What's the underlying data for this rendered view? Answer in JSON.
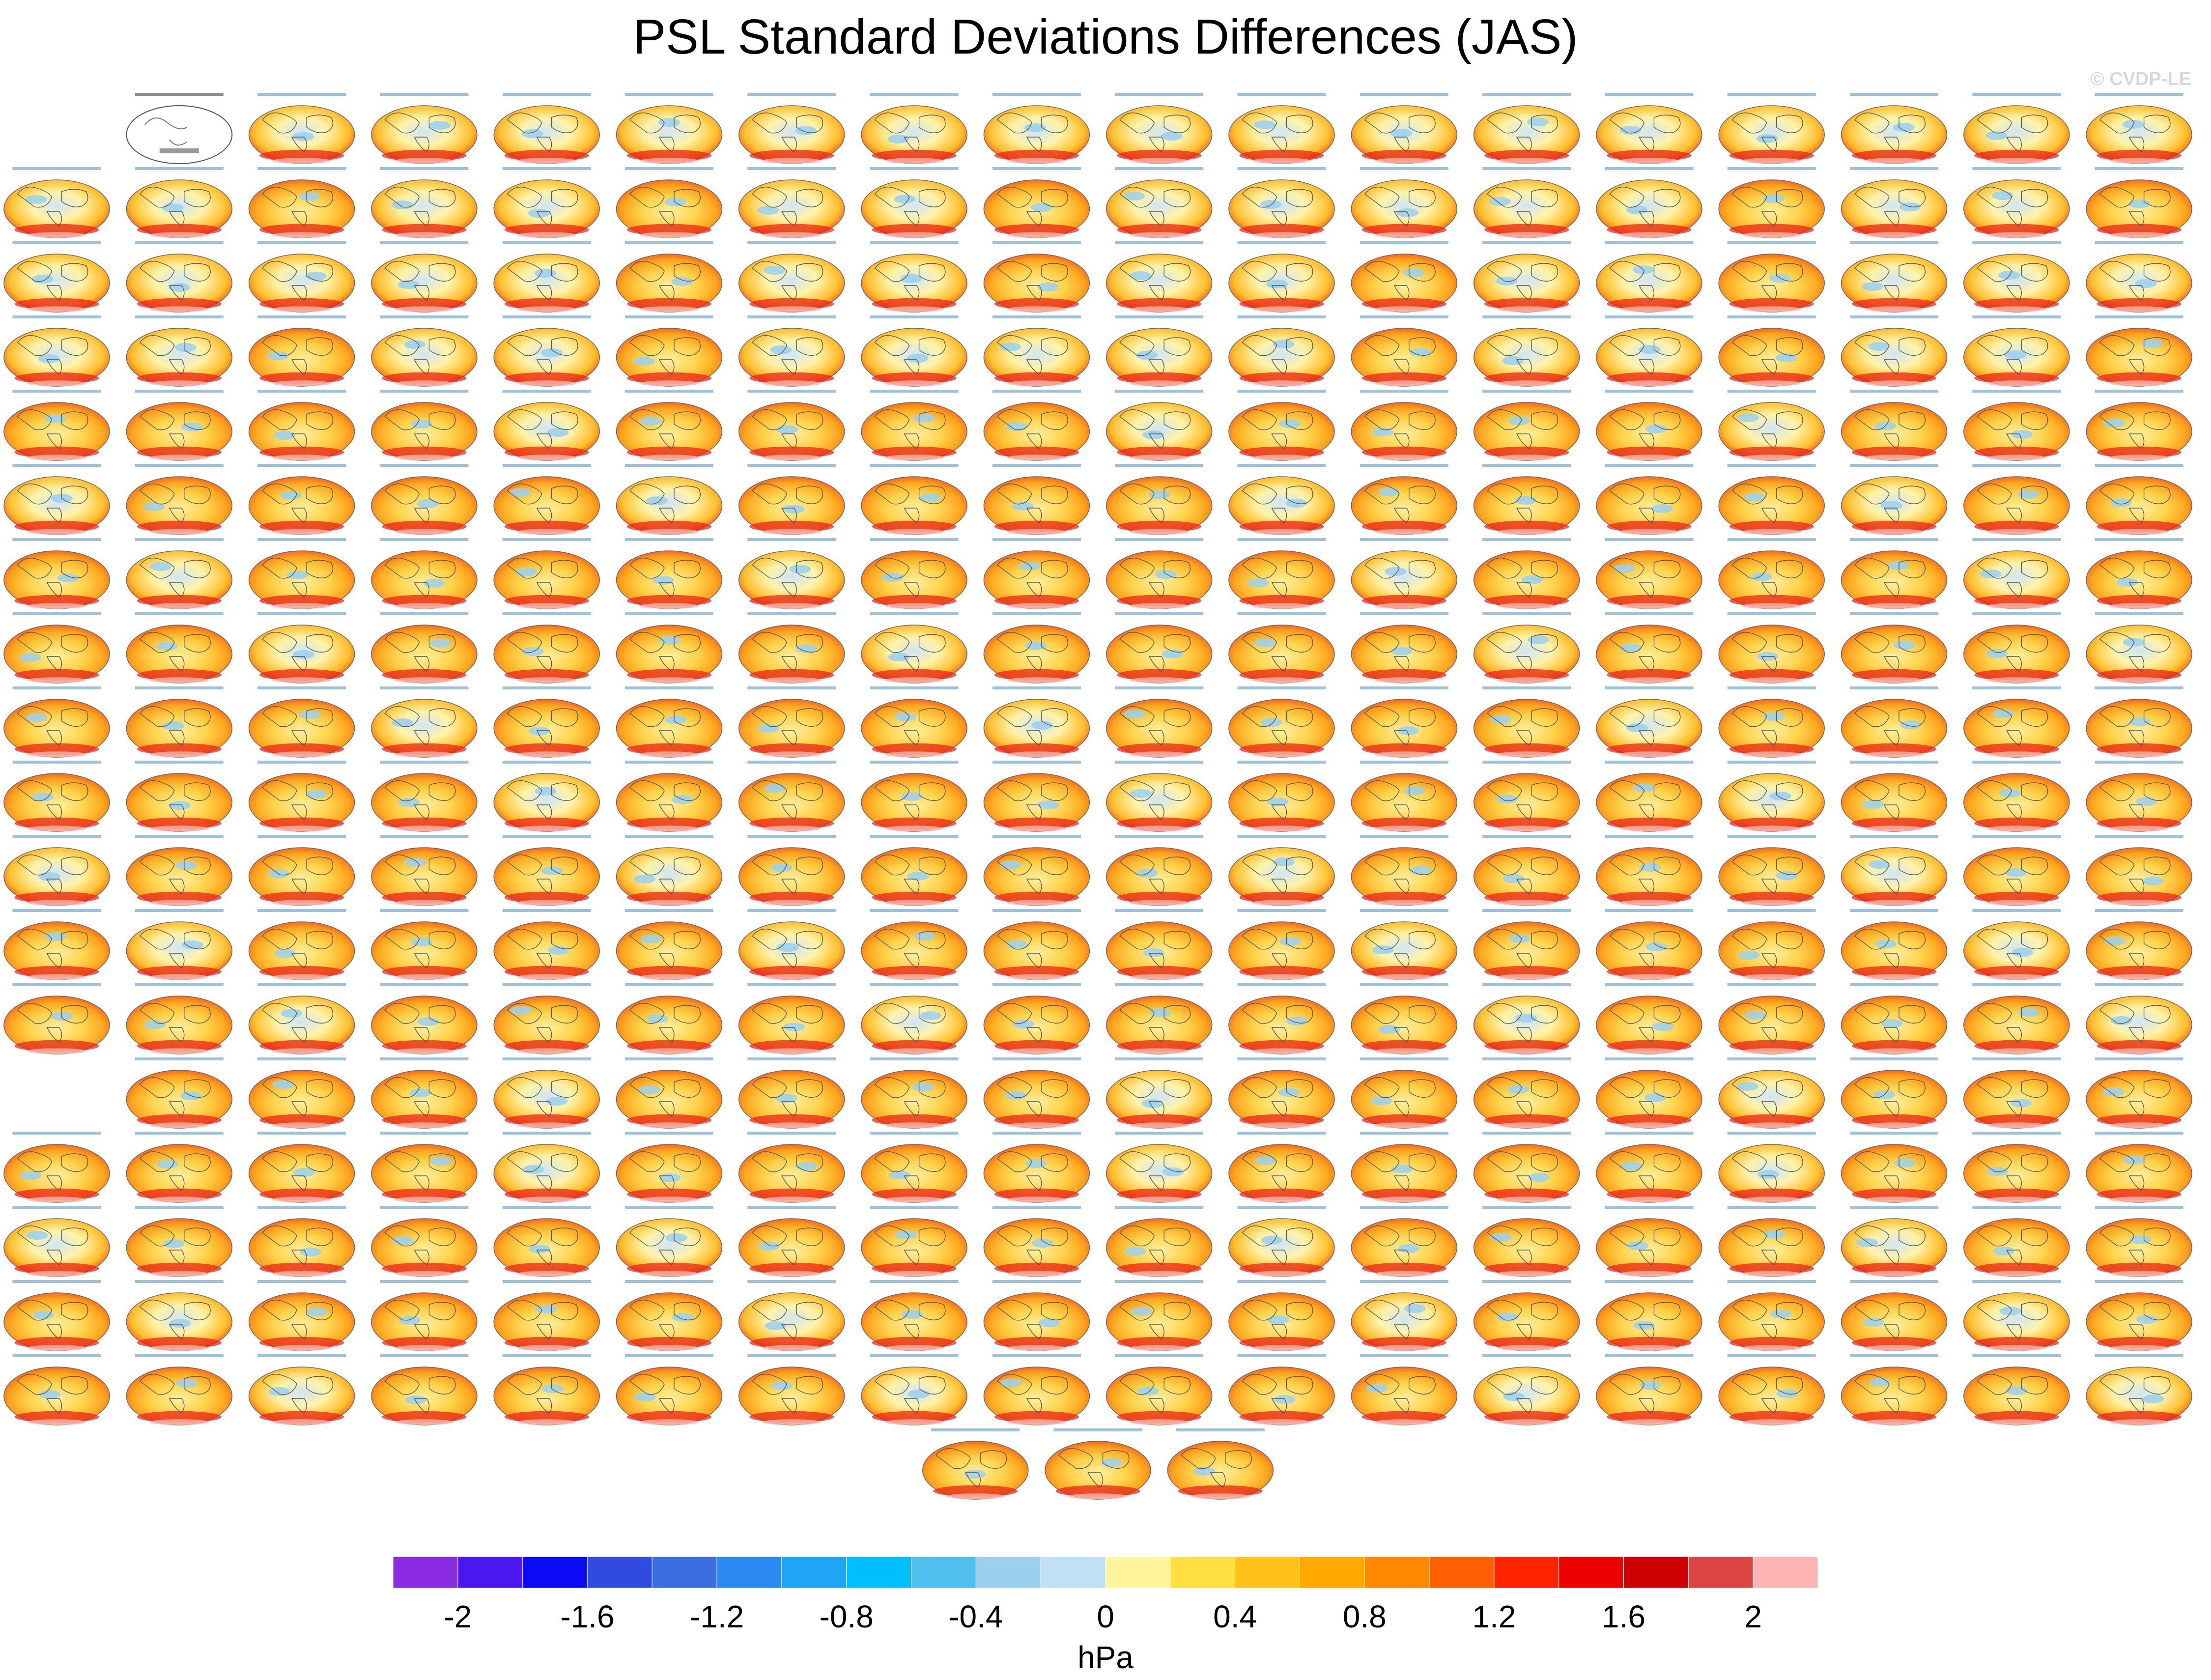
{
  "page": {
    "title": "PSL Standard Deviations Differences (JAS)",
    "watermark": "© CVDP-LE"
  },
  "chart_data": {
    "type": "heatmap",
    "title": "PSL Standard Deviations Differences (JAS)",
    "panel_kind": "global map of PSL standard deviation difference (ensemble member minus ERA5)",
    "panel_rows": [
      18,
      18,
      18,
      18,
      18,
      18,
      18,
      18,
      18,
      18,
      18,
      18,
      18,
      17,
      18,
      18,
      18,
      18,
      3
    ],
    "reference_panel_position": "row 1, column 2",
    "colorbar": {
      "unit": "hPa",
      "levels": [
        -2.2,
        -2.0,
        -1.8,
        -1.6,
        -1.4,
        -1.2,
        -1.0,
        -0.8,
        -0.6,
        -0.4,
        -0.2,
        0.0,
        0.2,
        0.4,
        0.6,
        0.8,
        1.0,
        1.2,
        1.4,
        1.6,
        1.8,
        2.0,
        2.2
      ],
      "tick_labels": [
        "-2",
        "-1.6",
        "-1.2",
        "-0.8",
        "-0.4",
        "0",
        "0.4",
        "0.8",
        "1.2",
        "1.6",
        "2"
      ],
      "tick_values": [
        -2,
        -1.6,
        -1.2,
        -0.8,
        -0.4,
        0,
        0.4,
        0.8,
        1.2,
        1.6,
        2
      ],
      "colors": [
        "#8a2be2",
        "#4b16f0",
        "#0a0af5",
        "#2f4be0",
        "#3a6ee0",
        "#2a8af0",
        "#1ea6f5",
        "#00bfff",
        "#50c0ee",
        "#9ad0ee",
        "#c0e0f4",
        "#fff59c",
        "#ffe040",
        "#ffc21a",
        "#ffa800",
        "#ff8a00",
        "#ff5f00",
        "#ff2400",
        "#ee0000",
        "#cc0000",
        "#dd4444",
        "#ffb4b4"
      ]
    }
  }
}
